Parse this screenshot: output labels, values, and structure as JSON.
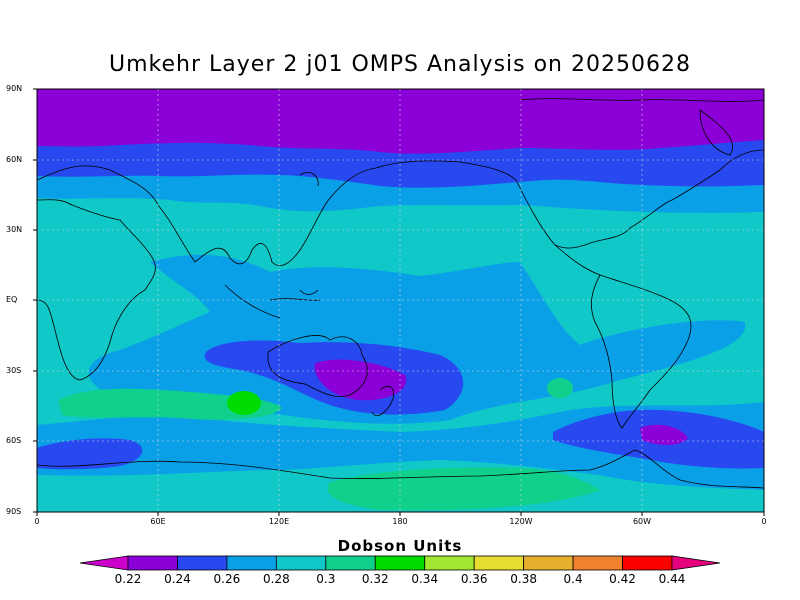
{
  "title": "Umkehr Layer 2 j01 OMPS Analysis on 20250628",
  "lat_ticks": [
    "90N",
    "60N",
    "30N",
    "EQ",
    "30S",
    "60S",
    "90S"
  ],
  "lon_ticks": [
    "0",
    "60E",
    "120E",
    "180",
    "120W",
    "60W",
    "0"
  ],
  "colorbar": {
    "title": "Dobson Units",
    "ticks": [
      "0.22",
      "0.24",
      "0.26",
      "0.28",
      "0.3",
      "0.32",
      "0.34",
      "0.36",
      "0.38",
      "0.4",
      "0.42",
      "0.44"
    ],
    "colors": [
      "#cc00cc",
      "#8c00d8",
      "#2848f0",
      "#0aa0e8",
      "#10c8c8",
      "#10d08c",
      "#00dc00",
      "#a0e632",
      "#e6dc32",
      "#e6af2d",
      "#f0822d",
      "#fa0000",
      "#e6007d"
    ]
  },
  "map_colors": {
    "0.22-0.24": "#8c00d8",
    "0.24-0.26": "#2848f0",
    "0.26-0.28": "#0aa0e8",
    "0.28-0.30": "#10c8c8",
    "0.30-0.32": "#10d08c"
  }
}
